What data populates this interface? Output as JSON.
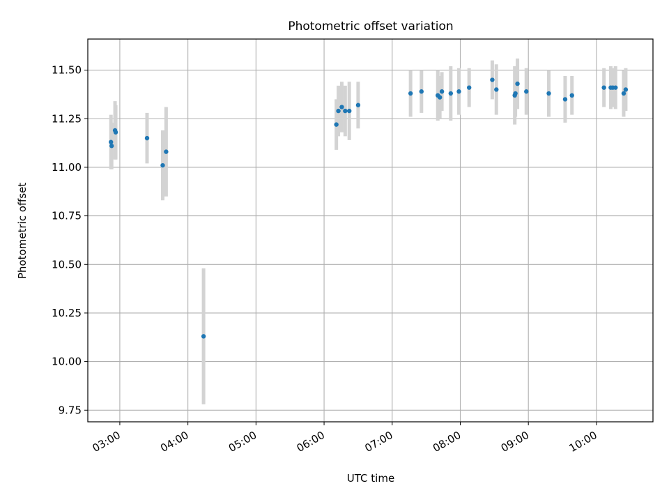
{
  "chart_data": {
    "type": "scatter",
    "title": "Photometric offset variation",
    "xlabel": "UTC time",
    "ylabel": "Photometric offset",
    "grid": true,
    "x_unit": "hours (UTC)",
    "xlim": [
      2.53,
      10.83
    ],
    "ylim": [
      9.69,
      11.66
    ],
    "xticks": [
      {
        "value": 3,
        "label": "03:00"
      },
      {
        "value": 4,
        "label": "04:00"
      },
      {
        "value": 5,
        "label": "05:00"
      },
      {
        "value": 6,
        "label": "06:00"
      },
      {
        "value": 7,
        "label": "07:00"
      },
      {
        "value": 8,
        "label": "08:00"
      },
      {
        "value": 9,
        "label": "09:00"
      },
      {
        "value": 10,
        "label": "10:00"
      }
    ],
    "yticks": [
      {
        "value": 9.75,
        "label": "9.75"
      },
      {
        "value": 10.0,
        "label": "10.00"
      },
      {
        "value": 10.25,
        "label": "10.25"
      },
      {
        "value": 10.5,
        "label": "10.50"
      },
      {
        "value": 10.75,
        "label": "10.75"
      },
      {
        "value": 11.0,
        "label": "11.00"
      },
      {
        "value": 11.25,
        "label": "11.25"
      },
      {
        "value": 11.5,
        "label": "11.50"
      }
    ],
    "series": [
      {
        "name": "offset",
        "marker_color": "#1f77b4",
        "errorbar_color": "#d3d3d3",
        "x": [
          2.87,
          2.88,
          2.93,
          2.94,
          3.4,
          3.63,
          3.68,
          4.23,
          6.18,
          6.21,
          6.26,
          6.31,
          6.37,
          6.5,
          7.27,
          7.43,
          7.67,
          7.7,
          7.73,
          7.86,
          7.98,
          8.13,
          8.47,
          8.53,
          8.8,
          8.81,
          8.84,
          8.97,
          9.3,
          9.54,
          9.64,
          10.11,
          10.21,
          10.24,
          10.28,
          10.4,
          10.43
        ],
        "y": [
          11.13,
          11.11,
          11.19,
          11.18,
          11.15,
          11.01,
          11.08,
          10.13,
          11.22,
          11.29,
          11.31,
          11.29,
          11.29,
          11.32,
          11.38,
          11.39,
          11.37,
          11.36,
          11.39,
          11.38,
          11.39,
          11.41,
          11.45,
          11.4,
          11.37,
          11.38,
          11.43,
          11.39,
          11.38,
          11.35,
          11.37,
          11.41,
          11.41,
          11.41,
          11.41,
          11.38,
          11.4
        ],
        "err": [
          0.14,
          0.12,
          0.15,
          0.14,
          0.13,
          0.18,
          0.23,
          0.35,
          0.13,
          0.13,
          0.13,
          0.13,
          0.15,
          0.12,
          0.12,
          0.11,
          0.13,
          0.11,
          0.1,
          0.14,
          0.12,
          0.1,
          0.1,
          0.13,
          0.15,
          0.12,
          0.13,
          0.12,
          0.12,
          0.12,
          0.1,
          0.1,
          0.11,
          0.1,
          0.11,
          0.12,
          0.11
        ]
      }
    ]
  }
}
